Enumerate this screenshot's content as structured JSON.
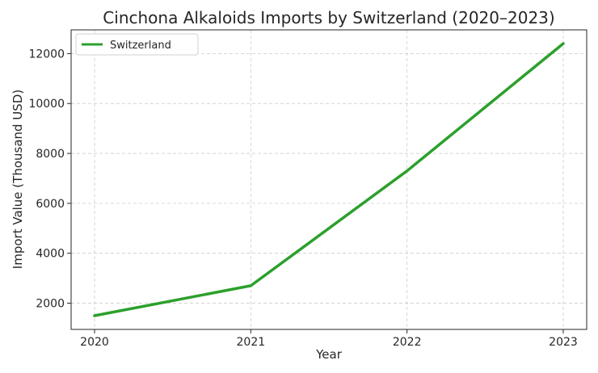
{
  "chart_data": {
    "type": "line",
    "title": "Cinchona Alkaloids Imports by Switzerland (2020–2023)",
    "xlabel": "Year",
    "ylabel": "Import Value (Thousand USD)",
    "x": [
      "2020",
      "2021",
      "2022",
      "2023"
    ],
    "series": [
      {
        "name": "Switzerland",
        "color": "#2ca02c",
        "values": [
          1500,
          2700,
          7300,
          12400
        ]
      }
    ],
    "xlim": [
      2019.85,
      2023.15
    ],
    "ylim": [
      950,
      12950
    ],
    "yticks": [
      2000,
      4000,
      6000,
      8000,
      10000,
      12000
    ],
    "xticks": [
      "2020",
      "2021",
      "2022",
      "2023"
    ],
    "grid": true,
    "legend_position": "top-left"
  }
}
